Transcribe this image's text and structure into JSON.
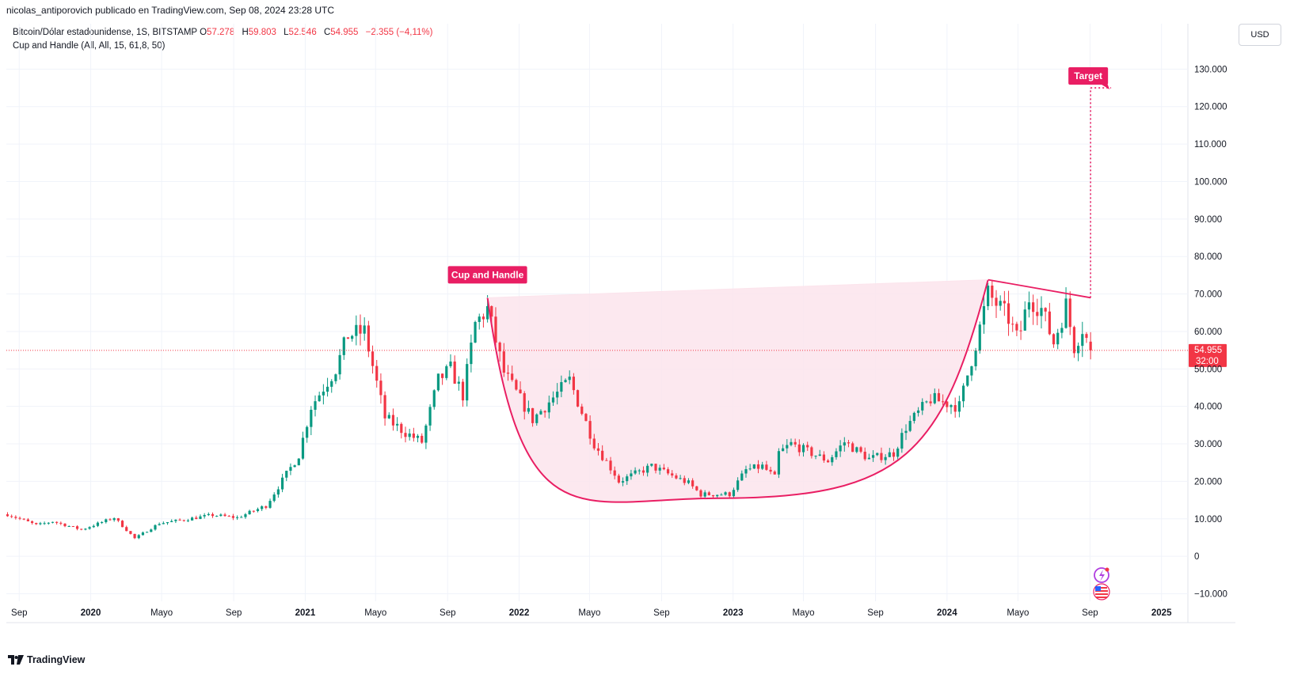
{
  "header": {
    "publisher_text": "nicolas_antiporovich publicado en TradingView.com, Sep 08, 2024 23:28 UTC"
  },
  "legend": {
    "symbol": "Bitcoin/Dólar estadounidense, 1S, BITSTAMP",
    "o_label": "O",
    "o_value": "57.278",
    "h_label": "H",
    "h_value": "59.803",
    "l_label": "L",
    "l_value": "52.546",
    "c_label": "C",
    "c_value": "54.955",
    "change": "−2.355 (−4,11%)",
    "indicator": "Cup and Handle (All, All, 15, 61,8, 50)"
  },
  "currency_button": "USD",
  "footer": {
    "brand": "TradingView"
  },
  "colors": {
    "up": "#089981",
    "down": "#f23645",
    "pattern": "#e91e63",
    "pattern_fill": "#fce4ec",
    "grid": "#f0f3fa",
    "price_line": "#f23645"
  },
  "chart_data": {
    "type": "candlestick",
    "title": "Bitcoin/Dólar estadounidense, 1S, BITSTAMP",
    "ylim": [
      -12000,
      140000
    ],
    "y_ticks": [
      130000,
      120000,
      110000,
      100000,
      90000,
      80000,
      70000,
      60000,
      50000,
      40000,
      30000,
      20000,
      10000,
      0,
      -10000
    ],
    "y_tick_labels": [
      "130.000",
      "120.000",
      "110.000",
      "100.000",
      "90.000",
      "80.000",
      "70.000",
      "60.000",
      "50.000",
      "40.000",
      "30.000",
      "20.000",
      "10.000",
      "0",
      "−10.000"
    ],
    "x_range": [
      "2019-08-10",
      "2025-02-15"
    ],
    "x_ticks": [
      {
        "date": "2019-09-01",
        "label": "Sep",
        "bold": false
      },
      {
        "date": "2020-01-01",
        "label": "2020",
        "bold": true
      },
      {
        "date": "2020-05-01",
        "label": "Mayo",
        "bold": false
      },
      {
        "date": "2020-09-01",
        "label": "Sep",
        "bold": false
      },
      {
        "date": "2021-01-01",
        "label": "2021",
        "bold": true
      },
      {
        "date": "2021-05-01",
        "label": "Mayo",
        "bold": false
      },
      {
        "date": "2021-09-01",
        "label": "Sep",
        "bold": false
      },
      {
        "date": "2022-01-01",
        "label": "2022",
        "bold": true
      },
      {
        "date": "2022-05-01",
        "label": "Mayo",
        "bold": false
      },
      {
        "date": "2022-09-01",
        "label": "Sep",
        "bold": false
      },
      {
        "date": "2023-01-01",
        "label": "2023",
        "bold": true
      },
      {
        "date": "2023-05-01",
        "label": "Mayo",
        "bold": false
      },
      {
        "date": "2023-09-01",
        "label": "Sep",
        "bold": false
      },
      {
        "date": "2024-01-01",
        "label": "2024",
        "bold": true
      },
      {
        "date": "2024-05-01",
        "label": "Mayo",
        "bold": false
      },
      {
        "date": "2024-09-01",
        "label": "Sep",
        "bold": false
      },
      {
        "date": "2025-01-01",
        "label": "2025",
        "bold": true
      }
    ],
    "anchors": [
      [
        "2019-08-12",
        11200
      ],
      [
        "2019-10-01",
        8300
      ],
      [
        "2019-10-28",
        9300
      ],
      [
        "2019-12-16",
        7100
      ],
      [
        "2020-02-10",
        10300
      ],
      [
        "2020-03-16",
        4800
      ],
      [
        "2020-04-27",
        8800
      ],
      [
        "2020-06-01",
        9600
      ],
      [
        "2020-07-27",
        11000
      ],
      [
        "2020-09-07",
        10300
      ],
      [
        "2020-10-26",
        13500
      ],
      [
        "2020-12-21",
        27000
      ],
      [
        "2021-01-11",
        40000
      ],
      [
        "2021-02-22",
        50000
      ],
      [
        "2021-03-15",
        59000
      ],
      [
        "2021-04-12",
        60000
      ],
      [
        "2021-05-17",
        37000
      ],
      [
        "2021-06-21",
        33000
      ],
      [
        "2021-07-19",
        30500
      ],
      [
        "2021-08-16",
        47000
      ],
      [
        "2021-09-06",
        50000
      ],
      [
        "2021-09-27",
        43000
      ],
      [
        "2021-10-18",
        62000
      ],
      [
        "2021-11-08",
        66000
      ],
      [
        "2021-12-06",
        49000
      ],
      [
        "2022-01-24",
        36500
      ],
      [
        "2022-03-28",
        47000
      ],
      [
        "2022-05-09",
        30000
      ],
      [
        "2022-06-13",
        22000
      ],
      [
        "2022-06-20",
        20000
      ],
      [
        "2022-08-15",
        24000
      ],
      [
        "2022-10-17",
        19500
      ],
      [
        "2022-11-07",
        16500
      ],
      [
        "2022-12-26",
        16600
      ],
      [
        "2023-01-23",
        23000
      ],
      [
        "2023-02-20",
        24000
      ],
      [
        "2023-03-13",
        21000
      ],
      [
        "2023-03-20",
        27500
      ],
      [
        "2023-04-10",
        30000
      ],
      [
        "2023-06-12",
        25500
      ],
      [
        "2023-07-10",
        30500
      ],
      [
        "2023-08-21",
        26000
      ],
      [
        "2023-10-02",
        27500
      ],
      [
        "2023-10-23",
        34500
      ],
      [
        "2023-12-04",
        42000
      ],
      [
        "2024-01-22",
        40000
      ],
      [
        "2024-02-26",
        61000
      ],
      [
        "2024-03-11",
        70000
      ],
      [
        "2024-04-15",
        63500
      ],
      [
        "2024-05-01",
        57500
      ],
      [
        "2024-05-20",
        69000
      ],
      [
        "2024-06-10",
        66000
      ],
      [
        "2024-07-01",
        57000
      ],
      [
        "2024-07-22",
        67000
      ],
      [
        "2024-08-05",
        56000
      ],
      [
        "2024-08-19",
        61000
      ],
      [
        "2024-09-02",
        54955
      ]
    ],
    "last_candle": {
      "date": "2024-09-02",
      "open": 57278,
      "high": 59803,
      "low": 52546,
      "close": 54955
    },
    "current_price": 54955,
    "current_price_label": "54.955",
    "countdown_label": "32:00",
    "pattern": {
      "name": "Cup and Handle",
      "label": "Cup and Handle",
      "cup_left": [
        "2021-11-08",
        69000
      ],
      "cup_bottom": [
        "2022-12-12",
        15500
      ],
      "cup_right": [
        "2024-03-11",
        73800
      ],
      "handle_end": [
        "2024-09-02",
        69000
      ],
      "target_label": "Target",
      "target_price": 125000,
      "target_end_date": "2024-10-07"
    }
  }
}
